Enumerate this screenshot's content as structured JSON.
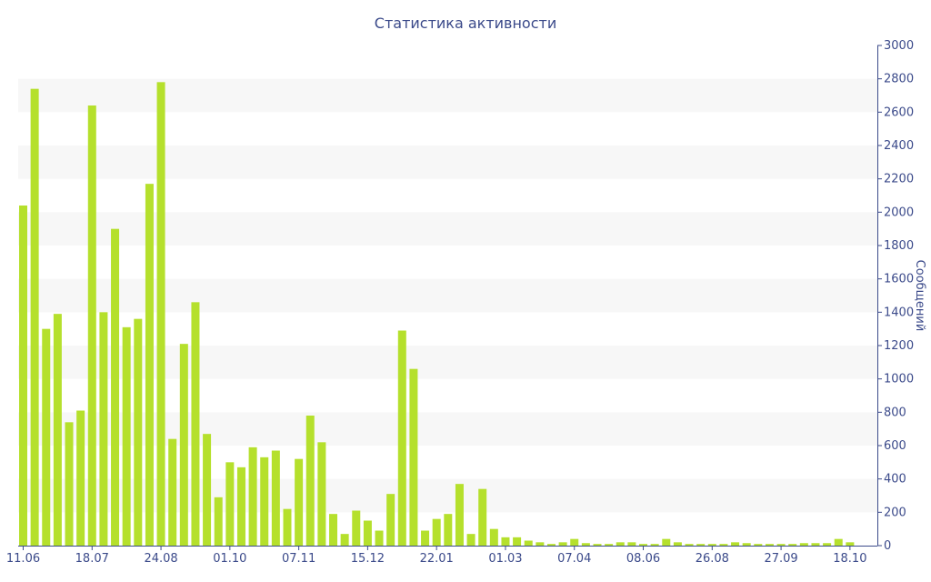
{
  "chart_data": {
    "type": "bar",
    "title": "Статистика активности",
    "ylabel": "Сообщений",
    "xlabel": "",
    "ylim": [
      0,
      3000
    ],
    "y_axis_side": "right",
    "y_ticks": [
      0,
      200,
      400,
      600,
      800,
      1000,
      1200,
      1400,
      1600,
      1800,
      2000,
      2200,
      2400,
      2600,
      2800,
      3000
    ],
    "x_tick_labels": [
      {
        "label": "11.06",
        "index": 0
      },
      {
        "label": "18.07",
        "index": 6
      },
      {
        "label": "24.08",
        "index": 12
      },
      {
        "label": "01.10",
        "index": 18
      },
      {
        "label": "07.11",
        "index": 24
      },
      {
        "label": "15.12",
        "index": 30
      },
      {
        "label": "22.01",
        "index": 36
      },
      {
        "label": "01.03",
        "index": 42
      },
      {
        "label": "07.04",
        "index": 48
      },
      {
        "label": "08.06",
        "index": 54
      },
      {
        "label": "26.08",
        "index": 60
      },
      {
        "label": "27.09",
        "index": 66
      },
      {
        "label": "18.10",
        "index": 72
      }
    ],
    "values": [
      2040,
      2740,
      1300,
      1390,
      740,
      810,
      2640,
      1400,
      1900,
      1310,
      1360,
      2170,
      2780,
      640,
      1210,
      1460,
      670,
      290,
      500,
      470,
      590,
      530,
      570,
      220,
      520,
      780,
      620,
      190,
      70,
      210,
      150,
      90,
      310,
      1290,
      1060,
      90,
      160,
      190,
      370,
      70,
      340,
      100,
      50,
      50,
      30,
      20,
      10,
      20,
      40,
      15,
      10,
      10,
      20,
      20,
      10,
      10,
      40,
      20,
      10,
      10,
      10,
      10,
      20,
      15,
      10,
      10,
      10,
      10,
      15,
      15,
      15,
      40,
      20
    ],
    "grid": "alternating horizontal bands",
    "colors": {
      "bar": "#b5e02c",
      "text": "#3b4a8a",
      "band": "#f7f7f7",
      "axis": "#3b4a8a"
    }
  }
}
